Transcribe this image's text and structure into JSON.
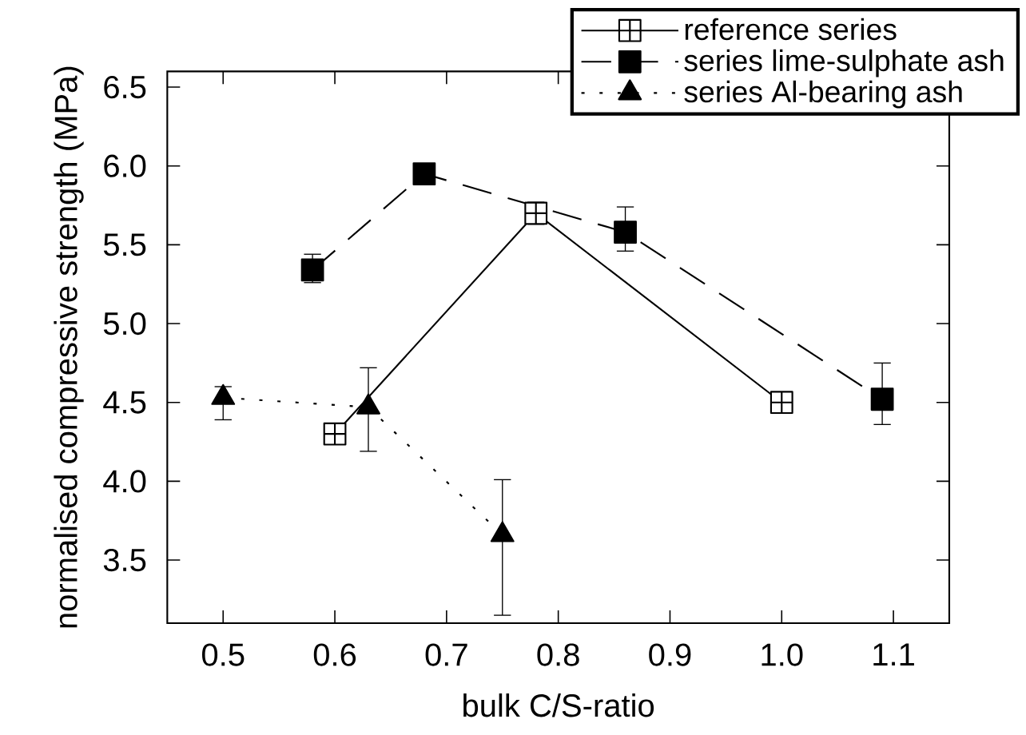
{
  "chart_data": {
    "type": "line",
    "xlabel": "bulk C/S-ratio",
    "ylabel": "normalised compressive strength (MPa)",
    "xlim": [
      0.45,
      1.15
    ],
    "ylim": [
      3.1,
      6.6
    ],
    "xticks": [
      {
        "value": 0.5,
        "label": "0.5"
      },
      {
        "value": 0.6,
        "label": "0.6"
      },
      {
        "value": 0.7,
        "label": "0.7"
      },
      {
        "value": 0.8,
        "label": "0.8"
      },
      {
        "value": 0.9,
        "label": "0.9"
      },
      {
        "value": 1.0,
        "label": "1.0"
      },
      {
        "value": 1.1,
        "label": "1.1"
      }
    ],
    "yticks": [
      {
        "value": 3.5,
        "label": "3.5"
      },
      {
        "value": 4.0,
        "label": "4.0"
      },
      {
        "value": 4.5,
        "label": "4.5"
      },
      {
        "value": 5.0,
        "label": "5.0"
      },
      {
        "value": 5.5,
        "label": "5.5"
      },
      {
        "value": 6.0,
        "label": "6.0"
      },
      {
        "value": 6.5,
        "label": "6.5"
      }
    ],
    "grid": false,
    "legend": "top right",
    "series": [
      {
        "name": "reference series",
        "color": "#000000",
        "marker": "cross",
        "line_style": "solid",
        "x": [
          0.6,
          0.78,
          1.0
        ],
        "values": [
          4.3,
          5.7,
          4.5
        ],
        "errors": [
          null,
          [
            5.63,
            5.77
          ],
          null
        ]
      },
      {
        "name": "series lime-sulphate ash",
        "color": "#000000",
        "marker": "square",
        "line_style": "dashed",
        "x": [
          0.58,
          0.68,
          0.86,
          1.09
        ],
        "values": [
          5.34,
          5.95,
          5.58,
          4.52
        ],
        "errors": [
          [
            5.26,
            5.44
          ],
          null,
          [
            5.46,
            5.74
          ],
          [
            4.36,
            4.75
          ]
        ]
      },
      {
        "name": "series Al-bearing ash",
        "color": "#000000",
        "marker": "triangle",
        "line_style": "dotted",
        "x": [
          0.5,
          0.63,
          0.75
        ],
        "values": [
          4.53,
          4.47,
          3.66
        ],
        "errors": [
          [
            4.39,
            4.6
          ],
          [
            4.19,
            4.72
          ],
          [
            3.15,
            4.01
          ]
        ]
      }
    ]
  }
}
